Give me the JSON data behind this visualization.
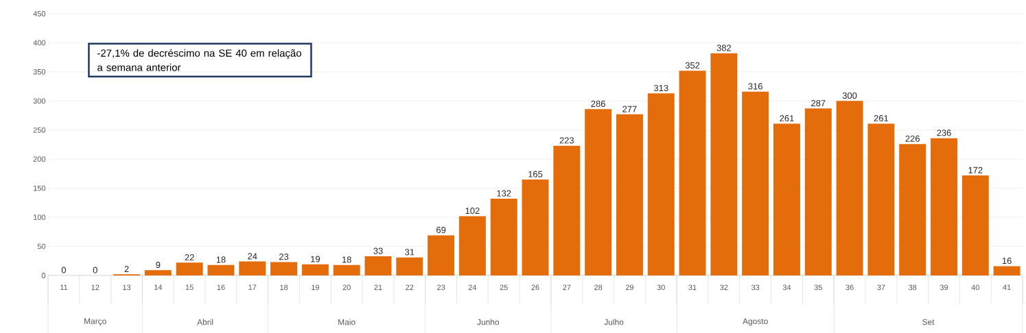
{
  "chart_data": {
    "type": "bar",
    "categories": [
      "11",
      "12",
      "13",
      "14",
      "15",
      "16",
      "17",
      "18",
      "19",
      "20",
      "21",
      "22",
      "23",
      "24",
      "25",
      "26",
      "27",
      "28",
      "29",
      "30",
      "31",
      "32",
      "33",
      "34",
      "35",
      "36",
      "37",
      "38",
      "39",
      "40",
      "41"
    ],
    "values": [
      0,
      0,
      2,
      9,
      22,
      18,
      24,
      23,
      19,
      18,
      33,
      31,
      69,
      102,
      132,
      165,
      223,
      286,
      277,
      313,
      352,
      382,
      316,
      261,
      287,
      300,
      261,
      226,
      236,
      172,
      16
    ],
    "color": "#e46c0a",
    "ylim": [
      0,
      450
    ],
    "yticks": [
      0,
      50,
      100,
      150,
      200,
      250,
      300,
      350,
      400,
      450
    ],
    "grid": "y",
    "data_labels": true,
    "annotations": [
      "-27,1% de decréscimo na SE 40 em relação a semana anterior",
      "Março",
      "Abril",
      "Maio",
      "Junho",
      "Julho",
      "Agosto",
      "Set"
    ]
  }
}
